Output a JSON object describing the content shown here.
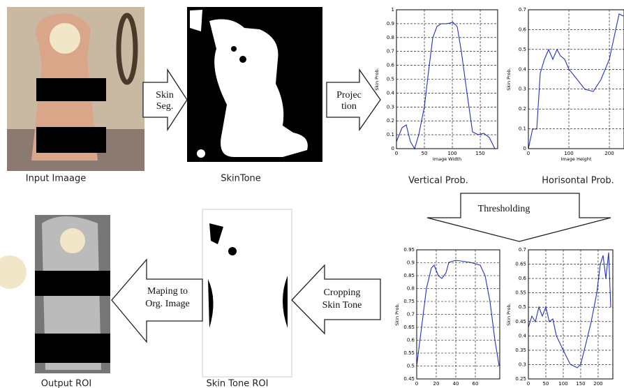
{
  "images": [
    {
      "label": "Input Imaage"
    },
    {
      "label": "SkinTone"
    },
    {
      "label": "Skin Tone ROI"
    },
    {
      "label": "Output ROI"
    }
  ],
  "arrows": [
    {
      "lines": [
        "Skin",
        "Seg."
      ]
    },
    {
      "lines": [
        "Projec",
        "tion"
      ]
    },
    {
      "lines": [
        "Thresholding"
      ]
    },
    {
      "lines": [
        "Cropping",
        "Skin Tone"
      ]
    },
    {
      "lines": [
        "Maping to",
        "Org. Image"
      ]
    }
  ],
  "plots": [
    {
      "title": "Vertical Prob.",
      "y_label": "Skin Prob.",
      "x_label": "Image Width",
      "yticks": [
        0,
        0.1,
        0.2,
        0.3,
        0.4,
        0.5,
        0.6,
        0.7,
        0.8,
        0.9,
        1
      ],
      "xticks": [
        0,
        50,
        100,
        150
      ]
    },
    {
      "title": "Horisontal Prob.",
      "y_label": "Skin Prob.",
      "x_label": "Image Height",
      "yticks": [
        0,
        0.1,
        0.2,
        0.3,
        0.4,
        0.5,
        0.6,
        0.7
      ],
      "xticks": [
        0,
        100,
        200
      ]
    },
    {
      "y_label": "Skin Prob.",
      "yticks": [
        0.45,
        0.5,
        0.55,
        0.6,
        0.65,
        0.7,
        0.75,
        0.8,
        0.85,
        0.9,
        0.95
      ],
      "xticks": [
        0,
        20,
        40,
        60
      ]
    },
    {
      "y_label": "Skin Prob.",
      "yticks": [
        0.25,
        0.3,
        0.35,
        0.4,
        0.45,
        0.5,
        0.55,
        0.6,
        0.65,
        0.7
      ],
      "xticks": [
        0,
        50,
        100,
        150,
        200
      ]
    }
  ]
}
